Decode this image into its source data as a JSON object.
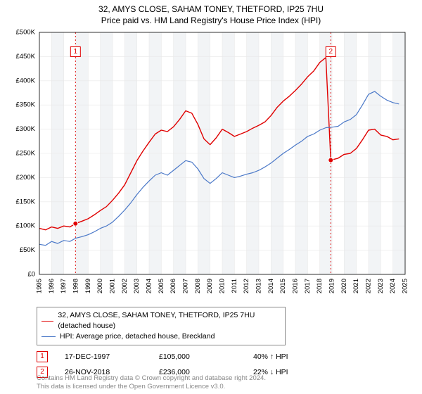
{
  "titles": {
    "line1": "32, AMYS CLOSE, SAHAM TONEY, THETFORD, IP25 7HU",
    "line2": "Price paid vs. HM Land Registry's House Price Index (HPI)"
  },
  "chart": {
    "type": "line",
    "x_axis": {
      "min": 1995,
      "max": 2025,
      "tick_step": 1,
      "ticks": [
        1995,
        1996,
        1997,
        1998,
        1999,
        2000,
        2001,
        2002,
        2003,
        2004,
        2005,
        2006,
        2007,
        2008,
        2009,
        2010,
        2011,
        2012,
        2013,
        2014,
        2015,
        2016,
        2017,
        2018,
        2019,
        2020,
        2021,
        2022,
        2023,
        2024,
        2025
      ],
      "label_fontsize": 9.5,
      "label_rotation": -90,
      "label_color": "#000000"
    },
    "y_axis": {
      "min": 0,
      "max": 500000,
      "tick_step": 50000,
      "tick_labels": [
        "£0",
        "£50K",
        "£100K",
        "£150K",
        "£200K",
        "£250K",
        "£300K",
        "£350K",
        "£400K",
        "£450K",
        "£500K"
      ],
      "label_fontsize": 9.5,
      "label_color": "#000000"
    },
    "grid": {
      "color": "#e8e8e8",
      "show_x": true,
      "show_y": true
    },
    "banding": {
      "alt_fill": "#f2f4f6",
      "start_index": 1
    },
    "background_color": "#ffffff",
    "series": [
      {
        "name": "price_paid",
        "label": "32, AMYS CLOSE, SAHAM TONEY, THETFORD, IP25 7HU (detached house)",
        "color": "#e00000",
        "line_width": 1.4,
        "data": [
          [
            1995.0,
            95000
          ],
          [
            1995.5,
            92000
          ],
          [
            1996.0,
            98000
          ],
          [
            1996.5,
            95000
          ],
          [
            1997.0,
            100000
          ],
          [
            1997.5,
            98000
          ],
          [
            1997.96,
            105000
          ],
          [
            1998.5,
            110000
          ],
          [
            1999.0,
            115000
          ],
          [
            1999.5,
            123000
          ],
          [
            2000.0,
            132000
          ],
          [
            2000.5,
            140000
          ],
          [
            2001.0,
            153000
          ],
          [
            2001.5,
            168000
          ],
          [
            2002.0,
            185000
          ],
          [
            2002.5,
            210000
          ],
          [
            2003.0,
            235000
          ],
          [
            2003.5,
            255000
          ],
          [
            2004.0,
            273000
          ],
          [
            2004.5,
            290000
          ],
          [
            2005.0,
            298000
          ],
          [
            2005.5,
            295000
          ],
          [
            2006.0,
            305000
          ],
          [
            2006.5,
            320000
          ],
          [
            2007.0,
            338000
          ],
          [
            2007.5,
            333000
          ],
          [
            2008.0,
            310000
          ],
          [
            2008.5,
            280000
          ],
          [
            2009.0,
            268000
          ],
          [
            2009.5,
            282000
          ],
          [
            2010.0,
            300000
          ],
          [
            2010.5,
            293000
          ],
          [
            2011.0,
            285000
          ],
          [
            2011.5,
            290000
          ],
          [
            2012.0,
            295000
          ],
          [
            2012.5,
            302000
          ],
          [
            2013.0,
            308000
          ],
          [
            2013.5,
            315000
          ],
          [
            2014.0,
            328000
          ],
          [
            2014.5,
            345000
          ],
          [
            2015.0,
            358000
          ],
          [
            2015.5,
            368000
          ],
          [
            2016.0,
            380000
          ],
          [
            2016.5,
            393000
          ],
          [
            2017.0,
            408000
          ],
          [
            2017.5,
            420000
          ],
          [
            2018.0,
            438000
          ],
          [
            2018.5,
            448000
          ],
          [
            2018.9,
            236000
          ],
          [
            2019.5,
            240000
          ],
          [
            2020.0,
            248000
          ],
          [
            2020.5,
            250000
          ],
          [
            2021.0,
            260000
          ],
          [
            2021.5,
            278000
          ],
          [
            2022.0,
            298000
          ],
          [
            2022.5,
            300000
          ],
          [
            2023.0,
            288000
          ],
          [
            2023.5,
            285000
          ],
          [
            2024.0,
            278000
          ],
          [
            2024.5,
            280000
          ]
        ],
        "vertical_jump_at": 2018.9
      },
      {
        "name": "hpi",
        "label": "HPI: Average price, detached house, Breckland",
        "color": "#4a78c8",
        "line_width": 1.2,
        "data": [
          [
            1995.0,
            62000
          ],
          [
            1995.5,
            60000
          ],
          [
            1996.0,
            68000
          ],
          [
            1996.5,
            64000
          ],
          [
            1997.0,
            70000
          ],
          [
            1997.5,
            68000
          ],
          [
            1998.0,
            75000
          ],
          [
            1998.5,
            78000
          ],
          [
            1999.0,
            82000
          ],
          [
            1999.5,
            88000
          ],
          [
            2000.0,
            95000
          ],
          [
            2000.5,
            100000
          ],
          [
            2001.0,
            108000
          ],
          [
            2001.5,
            120000
          ],
          [
            2002.0,
            133000
          ],
          [
            2002.5,
            148000
          ],
          [
            2003.0,
            165000
          ],
          [
            2003.5,
            180000
          ],
          [
            2004.0,
            193000
          ],
          [
            2004.5,
            205000
          ],
          [
            2005.0,
            210000
          ],
          [
            2005.5,
            205000
          ],
          [
            2006.0,
            215000
          ],
          [
            2006.5,
            225000
          ],
          [
            2007.0,
            235000
          ],
          [
            2007.5,
            232000
          ],
          [
            2008.0,
            218000
          ],
          [
            2008.5,
            198000
          ],
          [
            2009.0,
            188000
          ],
          [
            2009.5,
            198000
          ],
          [
            2010.0,
            210000
          ],
          [
            2010.5,
            205000
          ],
          [
            2011.0,
            200000
          ],
          [
            2011.5,
            203000
          ],
          [
            2012.0,
            207000
          ],
          [
            2012.5,
            210000
          ],
          [
            2013.0,
            215000
          ],
          [
            2013.5,
            222000
          ],
          [
            2014.0,
            230000
          ],
          [
            2014.5,
            240000
          ],
          [
            2015.0,
            250000
          ],
          [
            2015.5,
            258000
          ],
          [
            2016.0,
            267000
          ],
          [
            2016.5,
            275000
          ],
          [
            2017.0,
            285000
          ],
          [
            2017.5,
            290000
          ],
          [
            2018.0,
            298000
          ],
          [
            2018.5,
            303000
          ],
          [
            2019.0,
            304000
          ],
          [
            2019.5,
            306000
          ],
          [
            2020.0,
            315000
          ],
          [
            2020.5,
            320000
          ],
          [
            2021.0,
            330000
          ],
          [
            2021.5,
            350000
          ],
          [
            2022.0,
            372000
          ],
          [
            2022.5,
            378000
          ],
          [
            2023.0,
            368000
          ],
          [
            2023.5,
            360000
          ],
          [
            2024.0,
            355000
          ],
          [
            2024.5,
            352000
          ]
        ]
      }
    ],
    "markers": [
      {
        "id": "1",
        "x": 1997.96,
        "y": 105000,
        "color": "#e00000",
        "box_y": 460000,
        "dashed_line_color": "#e00000"
      },
      {
        "id": "2",
        "x": 2018.9,
        "y": 236000,
        "color": "#e00000",
        "box_y": 460000,
        "dashed_line_color": "#e00000"
      }
    ]
  },
  "legend": {
    "rows": [
      {
        "color": "#e00000",
        "label": "32, AMYS CLOSE, SAHAM TONEY, THETFORD, IP25 7HU (detached house)"
      },
      {
        "color": "#4a78c8",
        "label": "HPI: Average price, detached house, Breckland"
      }
    ]
  },
  "points_table": {
    "rows": [
      {
        "marker": "1",
        "date": "17-DEC-1997",
        "price": "£105,000",
        "delta": "40% ↑ HPI"
      },
      {
        "marker": "2",
        "date": "26-NOV-2018",
        "price": "£236,000",
        "delta": "22% ↓ HPI"
      }
    ]
  },
  "footer": {
    "line1": "Contains HM Land Registry data © Crown copyright and database right 2024.",
    "line2": "This data is licensed under the Open Government Licence v3.0."
  }
}
